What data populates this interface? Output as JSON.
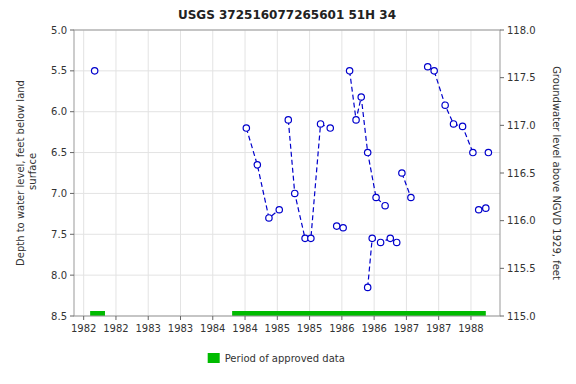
{
  "chart_data": {
    "type": "line",
    "title": "USGS 372516077265601 51H 34",
    "y_label": "Depth to water level, feet below land\n surface",
    "y2_label": "Groundwater level above NGVD 1929, feet",
    "xlim": [
      1981.6,
      1988.2
    ],
    "xticks": [
      {
        "value": 1981.75,
        "label": "1982"
      },
      {
        "value": 1982.25,
        "label": "1982"
      },
      {
        "value": 1982.75,
        "label": "1983"
      },
      {
        "value": 1983.25,
        "label": "1983"
      },
      {
        "value": 1983.75,
        "label": "1984"
      },
      {
        "value": 1984.25,
        "label": "1984"
      },
      {
        "value": 1984.75,
        "label": "1985"
      },
      {
        "value": 1985.25,
        "label": "1985"
      },
      {
        "value": 1985.75,
        "label": "1986"
      },
      {
        "value": 1986.25,
        "label": "1986"
      },
      {
        "value": 1986.75,
        "label": "1987"
      },
      {
        "value": 1987.25,
        "label": "1987"
      },
      {
        "value": 1987.75,
        "label": "1988"
      }
    ],
    "ylim": [
      8.5,
      5.0
    ],
    "yticks": [
      {
        "value": 5.0,
        "label": "5.0"
      },
      {
        "value": 5.5,
        "label": "5.5"
      },
      {
        "value": 6.0,
        "label": "6.0"
      },
      {
        "value": 6.5,
        "label": "6.5"
      },
      {
        "value": 7.0,
        "label": "7.0"
      },
      {
        "value": 7.5,
        "label": "7.5"
      },
      {
        "value": 8.0,
        "label": "8.0"
      },
      {
        "value": 8.5,
        "label": "8.5"
      }
    ],
    "y2lim": [
      115.0,
      118.0
    ],
    "y2ticks": [
      {
        "value": 115.0,
        "label": "115.0"
      },
      {
        "value": 115.5,
        "label": "115.5"
      },
      {
        "value": 116.0,
        "label": "116.0"
      },
      {
        "value": 116.5,
        "label": "116.5"
      },
      {
        "value": 117.0,
        "label": "117.0"
      },
      {
        "value": 117.5,
        "label": "117.5"
      },
      {
        "value": 118.0,
        "label": "118.0"
      }
    ],
    "grid": true,
    "series": [
      {
        "x": [
          1981.92
        ],
        "values": [
          5.5
        ],
        "color": "#0000cc",
        "line_style": "dashed",
        "marker": "circle"
      },
      {
        "x": [
          1984.27,
          1984.44,
          1984.62,
          1984.78
        ],
        "values": [
          6.2,
          6.65,
          7.3,
          7.2
        ],
        "color": "#0000cc",
        "line_style": "dashed",
        "marker": "circle"
      },
      {
        "x": [
          1984.92,
          1985.02,
          1985.18,
          1985.27,
          1985.42,
          1985.57
        ],
        "values": [
          6.1,
          7.0,
          7.55,
          7.55,
          6.15,
          6.2
        ],
        "color": "#0000cc",
        "line_style": "dashed",
        "marker": "circle"
      },
      {
        "x": [
          1985.67,
          1985.77
        ],
        "values": [
          7.4,
          7.42
        ],
        "color": "#0000cc",
        "line_style": "dashed",
        "marker": "circle"
      },
      {
        "x": [
          1985.87,
          1985.97,
          1986.05,
          1986.15,
          1986.28,
          1986.42
        ],
        "values": [
          5.5,
          6.1,
          5.82,
          6.5,
          7.05,
          7.15
        ],
        "color": "#0000cc",
        "line_style": "dashed",
        "marker": "circle"
      },
      {
        "x": [
          1986.15,
          1986.22,
          1986.35,
          1986.5,
          1986.6
        ],
        "values": [
          8.15,
          7.55,
          7.6,
          7.55,
          7.6
        ],
        "color": "#0000cc",
        "line_style": "dashed",
        "marker": "circle"
      },
      {
        "x": [
          1986.68,
          1986.82
        ],
        "values": [
          6.75,
          7.05
        ],
        "color": "#0000cc",
        "line_style": "dashed",
        "marker": "circle"
      },
      {
        "x": [
          1987.08,
          1987.18,
          1987.35,
          1987.48,
          1987.62,
          1987.78
        ],
        "values": [
          5.45,
          5.5,
          5.92,
          6.15,
          6.18,
          6.5
        ],
        "color": "#0000cc",
        "line_style": "dashed",
        "marker": "circle"
      },
      {
        "x": [
          1987.87,
          1987.98
        ],
        "values": [
          7.2,
          7.18
        ],
        "color": "#0000cc",
        "line_style": "dashed",
        "marker": "circle"
      },
      {
        "x": [
          1988.02
        ],
        "values": [
          6.5
        ],
        "color": "#0000cc",
        "line_style": "dashed",
        "marker": "circle"
      },
      {
        "name": "Period of approved data",
        "type": "range",
        "color": "#00bb00",
        "values": [
          8.5,
          8.5
        ],
        "starts": [
          1981.85,
          1984.05
        ],
        "ends": [
          1982.08,
          1987.98
        ]
      }
    ]
  }
}
